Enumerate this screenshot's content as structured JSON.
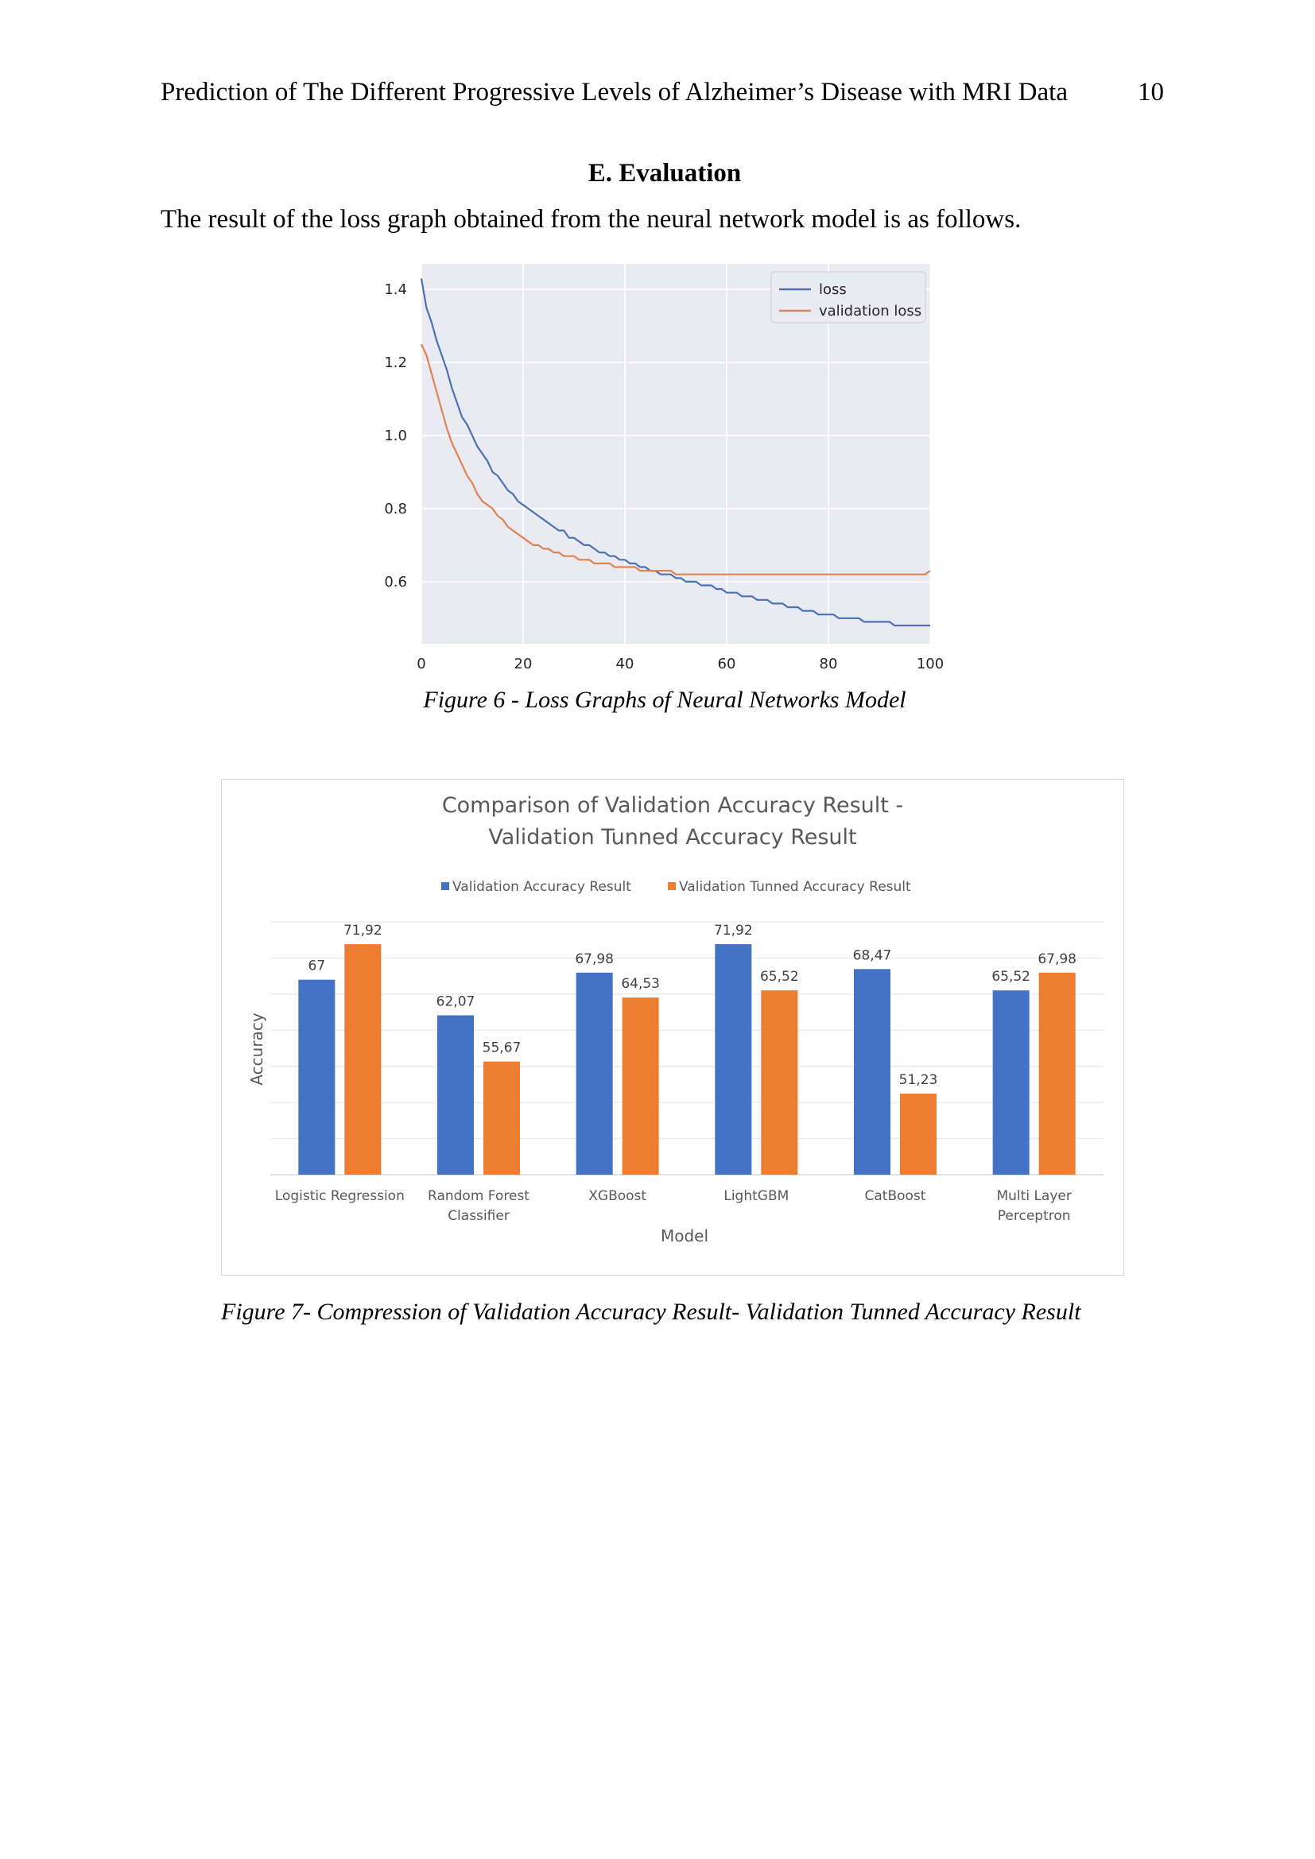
{
  "header": {
    "title": "Prediction of The Different Progressive Levels of Alzheimer’s Disease with MRI Data",
    "page_number": "10"
  },
  "section_heading": "E. Evaluation",
  "paragraph": "The result of the loss graph obtained from the neural network model is as follows.",
  "figure6_caption": "Figure 6 - Loss Graphs of Neural Networks Model",
  "figure7_caption": "Figure 7- Compression of Validation Accuracy Result- Validation Tunned Accuracy Result",
  "chart_data": [
    {
      "type": "line",
      "title": "",
      "xlabel": "",
      "ylabel": "",
      "xlim": [
        0,
        100
      ],
      "ylim": [
        0.43,
        1.47
      ],
      "xticks": [
        0,
        20,
        40,
        60,
        80,
        100
      ],
      "yticks": [
        0.6,
        0.8,
        1.0,
        1.2,
        1.4
      ],
      "grid": true,
      "legend_position": "top-right",
      "x": [
        0,
        1,
        2,
        3,
        4,
        5,
        6,
        7,
        8,
        9,
        10,
        11,
        12,
        13,
        14,
        15,
        16,
        17,
        18,
        19,
        20,
        21,
        22,
        23,
        24,
        25,
        26,
        27,
        28,
        29,
        30,
        31,
        32,
        33,
        34,
        35,
        36,
        37,
        38,
        39,
        40,
        41,
        42,
        43,
        44,
        45,
        46,
        47,
        48,
        49,
        50,
        51,
        52,
        53,
        54,
        55,
        56,
        57,
        58,
        59,
        60,
        61,
        62,
        63,
        64,
        65,
        66,
        67,
        68,
        69,
        70,
        71,
        72,
        73,
        74,
        75,
        76,
        77,
        78,
        79,
        80,
        81,
        82,
        83,
        84,
        85,
        86,
        87,
        88,
        89,
        90,
        91,
        92,
        93,
        94,
        95,
        96,
        97,
        98,
        99,
        100
      ],
      "series": [
        {
          "name": "loss",
          "color": "#4c72b0",
          "values": [
            1.43,
            1.35,
            1.31,
            1.26,
            1.22,
            1.18,
            1.13,
            1.09,
            1.05,
            1.03,
            1.0,
            0.97,
            0.95,
            0.93,
            0.9,
            0.89,
            0.87,
            0.85,
            0.84,
            0.82,
            0.81,
            0.8,
            0.79,
            0.78,
            0.77,
            0.76,
            0.75,
            0.74,
            0.74,
            0.72,
            0.72,
            0.71,
            0.7,
            0.7,
            0.69,
            0.68,
            0.68,
            0.67,
            0.67,
            0.66,
            0.66,
            0.65,
            0.65,
            0.64,
            0.64,
            0.63,
            0.63,
            0.62,
            0.62,
            0.62,
            0.61,
            0.61,
            0.6,
            0.6,
            0.6,
            0.59,
            0.59,
            0.59,
            0.58,
            0.58,
            0.57,
            0.57,
            0.57,
            0.56,
            0.56,
            0.56,
            0.55,
            0.55,
            0.55,
            0.54,
            0.54,
            0.54,
            0.53,
            0.53,
            0.53,
            0.52,
            0.52,
            0.52,
            0.51,
            0.51,
            0.51,
            0.51,
            0.5,
            0.5,
            0.5,
            0.5,
            0.5,
            0.49,
            0.49,
            0.49,
            0.49,
            0.49,
            0.49,
            0.48,
            0.48,
            0.48,
            0.48,
            0.48,
            0.48,
            0.48,
            0.48
          ]
        },
        {
          "name": "validation loss",
          "color": "#dd8452",
          "values": [
            1.25,
            1.22,
            1.17,
            1.12,
            1.07,
            1.02,
            0.98,
            0.95,
            0.92,
            0.89,
            0.87,
            0.84,
            0.82,
            0.81,
            0.8,
            0.78,
            0.77,
            0.75,
            0.74,
            0.73,
            0.72,
            0.71,
            0.7,
            0.7,
            0.69,
            0.69,
            0.68,
            0.68,
            0.67,
            0.67,
            0.67,
            0.66,
            0.66,
            0.66,
            0.65,
            0.65,
            0.65,
            0.65,
            0.64,
            0.64,
            0.64,
            0.64,
            0.64,
            0.63,
            0.63,
            0.63,
            0.63,
            0.63,
            0.63,
            0.63,
            0.62,
            0.62,
            0.62,
            0.62,
            0.62,
            0.62,
            0.62,
            0.62,
            0.62,
            0.62,
            0.62,
            0.62,
            0.62,
            0.62,
            0.62,
            0.62,
            0.62,
            0.62,
            0.62,
            0.62,
            0.62,
            0.62,
            0.62,
            0.62,
            0.62,
            0.62,
            0.62,
            0.62,
            0.62,
            0.62,
            0.62,
            0.62,
            0.62,
            0.62,
            0.62,
            0.62,
            0.62,
            0.62,
            0.62,
            0.62,
            0.62,
            0.62,
            0.62,
            0.62,
            0.62,
            0.62,
            0.62,
            0.62,
            0.62,
            0.62,
            0.63
          ]
        }
      ]
    },
    {
      "type": "bar",
      "title": "Comparison of Validation Accuracy Result  -\nValidation Tunned Accuracy Result",
      "xlabel": "Model",
      "ylabel": "Accuracy",
      "ylim": [
        40,
        75
      ],
      "grid": true,
      "legend_position": "top",
      "categories": [
        "Logistic Regression",
        "Random Forest\nClassifier",
        "XGBoost",
        "LightGBM",
        "CatBoost",
        "Multi Layer\nPerceptron"
      ],
      "series": [
        {
          "name": "Validation Accuracy Result",
          "color": "#4472c4",
          "values": [
            67,
            62.07,
            67.98,
            71.92,
            68.47,
            65.52
          ],
          "labels": [
            "67",
            "62,07",
            "67,98",
            "71,92",
            "68,47",
            "65,52"
          ]
        },
        {
          "name": "Validation Tunned Accuracy Result",
          "color": "#ed7d31",
          "values": [
            71.92,
            55.67,
            64.53,
            65.52,
            51.23,
            67.98
          ],
          "labels": [
            "71,92",
            "55,67",
            "64,53",
            "65,52",
            "51,23",
            "67,98"
          ]
        }
      ]
    }
  ]
}
